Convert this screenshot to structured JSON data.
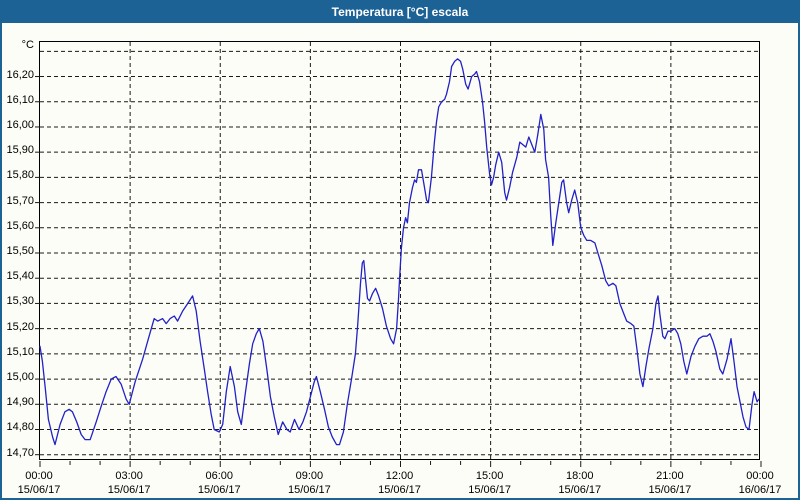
{
  "window": {
    "title": "Temperatura [°C] escala"
  },
  "colors": {
    "titlebar_bg": "#1d6295",
    "titlebar_text": "#ffffff",
    "window_border": "#1d6295",
    "background": "#fdfdf7",
    "plot_border": "#000000",
    "grid": "#1a1a1a",
    "axis_text": "#000000",
    "line": "#2121c8"
  },
  "chart_data": {
    "type": "line",
    "title": "Temperatura [°C] escala",
    "unit_label": "°C",
    "grid": true,
    "xlim_hours": [
      0,
      24
    ],
    "ylim": [
      14.675,
      16.337
    ],
    "y_gridline_values": [
      14.7,
      14.8,
      14.9,
      15.0,
      15.1,
      15.2,
      15.3,
      15.4,
      15.5,
      15.6,
      15.7,
      15.8,
      15.9,
      16.0,
      16.1,
      16.2,
      16.3
    ],
    "y_ticks": [
      {
        "value": 16.2,
        "label": "16,20"
      },
      {
        "value": 16.1,
        "label": "16,10"
      },
      {
        "value": 16.0,
        "label": "16,00"
      },
      {
        "value": 15.9,
        "label": "15,90"
      },
      {
        "value": 15.8,
        "label": "15,80"
      },
      {
        "value": 15.7,
        "label": "15,70"
      },
      {
        "value": 15.6,
        "label": "15,60"
      },
      {
        "value": 15.5,
        "label": "15,50"
      },
      {
        "value": 15.4,
        "label": "15,40"
      },
      {
        "value": 15.3,
        "label": "15,30"
      },
      {
        "value": 15.2,
        "label": "15,20"
      },
      {
        "value": 15.1,
        "label": "15,10"
      },
      {
        "value": 15.0,
        "label": "15,00"
      },
      {
        "value": 14.9,
        "label": "14,90"
      },
      {
        "value": 14.8,
        "label": "14,80"
      },
      {
        "value": 14.7,
        "label": "14,70"
      }
    ],
    "x_gridline_hours": [
      3,
      6,
      9,
      12,
      15,
      18,
      21
    ],
    "x_minor_tick_step_hours": 1,
    "x_ticks": [
      {
        "hour": 0,
        "time": "00:00",
        "date": "15/06/17"
      },
      {
        "hour": 3,
        "time": "03:00",
        "date": "15/06/17"
      },
      {
        "hour": 6,
        "time": "06:00",
        "date": "15/06/17"
      },
      {
        "hour": 9,
        "time": "09:00",
        "date": "15/06/17"
      },
      {
        "hour": 12,
        "time": "12:00",
        "date": "15/06/17"
      },
      {
        "hour": 15,
        "time": "15:00",
        "date": "15/06/17"
      },
      {
        "hour": 18,
        "time": "18:00",
        "date": "15/06/17"
      },
      {
        "hour": 21,
        "time": "21:00",
        "date": "15/06/17"
      },
      {
        "hour": 24,
        "time": "00:00",
        "date": "16/06/17"
      }
    ],
    "series": [
      {
        "name": "Temperatura",
        "color": "#2121c8",
        "points_hour_degC": [
          [
            0.0,
            15.13
          ],
          [
            0.08,
            15.07
          ],
          [
            0.17,
            14.97
          ],
          [
            0.28,
            14.84
          ],
          [
            0.42,
            14.77
          ],
          [
            0.5,
            14.74
          ],
          [
            0.67,
            14.82
          ],
          [
            0.83,
            14.87
          ],
          [
            0.97,
            14.88
          ],
          [
            1.08,
            14.87
          ],
          [
            1.22,
            14.83
          ],
          [
            1.37,
            14.78
          ],
          [
            1.5,
            14.76
          ],
          [
            1.67,
            14.76
          ],
          [
            1.87,
            14.83
          ],
          [
            2.03,
            14.89
          ],
          [
            2.2,
            14.95
          ],
          [
            2.37,
            15.0
          ],
          [
            2.53,
            15.01
          ],
          [
            2.7,
            14.98
          ],
          [
            2.87,
            14.92
          ],
          [
            2.97,
            14.9
          ],
          [
            3.17,
            14.99
          ],
          [
            3.42,
            15.08
          ],
          [
            3.63,
            15.17
          ],
          [
            3.8,
            15.24
          ],
          [
            3.92,
            15.23
          ],
          [
            4.08,
            15.24
          ],
          [
            4.2,
            15.22
          ],
          [
            4.33,
            15.24
          ],
          [
            4.47,
            15.25
          ],
          [
            4.58,
            15.23
          ],
          [
            4.75,
            15.27
          ],
          [
            4.92,
            15.3
          ],
          [
            5.08,
            15.33
          ],
          [
            5.2,
            15.27
          ],
          [
            5.33,
            15.15
          ],
          [
            5.47,
            15.04
          ],
          [
            5.58,
            14.95
          ],
          [
            5.7,
            14.86
          ],
          [
            5.8,
            14.8
          ],
          [
            5.97,
            14.79
          ],
          [
            6.08,
            14.82
          ],
          [
            6.2,
            14.95
          ],
          [
            6.33,
            15.05
          ],
          [
            6.47,
            14.97
          ],
          [
            6.58,
            14.87
          ],
          [
            6.7,
            14.82
          ],
          [
            6.83,
            14.94
          ],
          [
            6.97,
            15.06
          ],
          [
            7.08,
            15.14
          ],
          [
            7.2,
            15.18
          ],
          [
            7.3,
            15.2
          ],
          [
            7.42,
            15.15
          ],
          [
            7.55,
            15.04
          ],
          [
            7.67,
            14.93
          ],
          [
            7.8,
            14.85
          ],
          [
            7.93,
            14.78
          ],
          [
            8.08,
            14.83
          ],
          [
            8.22,
            14.8
          ],
          [
            8.33,
            14.79
          ],
          [
            8.47,
            14.84
          ],
          [
            8.62,
            14.8
          ],
          [
            8.75,
            14.83
          ],
          [
            8.87,
            14.87
          ],
          [
            9.0,
            14.93
          ],
          [
            9.13,
            14.99
          ],
          [
            9.2,
            15.01
          ],
          [
            9.33,
            14.95
          ],
          [
            9.47,
            14.88
          ],
          [
            9.6,
            14.81
          ],
          [
            9.73,
            14.77
          ],
          [
            9.87,
            14.74
          ],
          [
            9.97,
            14.74
          ],
          [
            10.1,
            14.79
          ],
          [
            10.23,
            14.9
          ],
          [
            10.37,
            15.0
          ],
          [
            10.5,
            15.1
          ],
          [
            10.58,
            15.22
          ],
          [
            10.67,
            15.38
          ],
          [
            10.73,
            15.46
          ],
          [
            10.78,
            15.47
          ],
          [
            10.83,
            15.4
          ],
          [
            10.9,
            15.32
          ],
          [
            10.97,
            15.31
          ],
          [
            11.07,
            15.34
          ],
          [
            11.17,
            15.36
          ],
          [
            11.27,
            15.33
          ],
          [
            11.4,
            15.28
          ],
          [
            11.53,
            15.21
          ],
          [
            11.67,
            15.16
          ],
          [
            11.77,
            15.14
          ],
          [
            11.87,
            15.2
          ],
          [
            11.93,
            15.31
          ],
          [
            11.97,
            15.4
          ],
          [
            12.03,
            15.52
          ],
          [
            12.1,
            15.6
          ],
          [
            12.17,
            15.64
          ],
          [
            12.23,
            15.62
          ],
          [
            12.3,
            15.7
          ],
          [
            12.4,
            15.76
          ],
          [
            12.47,
            15.79
          ],
          [
            12.53,
            15.78
          ],
          [
            12.6,
            15.83
          ],
          [
            12.7,
            15.83
          ],
          [
            12.8,
            15.76
          ],
          [
            12.87,
            15.71
          ],
          [
            12.93,
            15.7
          ],
          [
            13.03,
            15.8
          ],
          [
            13.13,
            15.94
          ],
          [
            13.2,
            16.02
          ],
          [
            13.27,
            16.08
          ],
          [
            13.37,
            16.1
          ],
          [
            13.47,
            16.11
          ],
          [
            13.53,
            16.13
          ],
          [
            13.63,
            16.18
          ],
          [
            13.7,
            16.24
          ],
          [
            13.8,
            16.26
          ],
          [
            13.9,
            16.27
          ],
          [
            14.0,
            16.26
          ],
          [
            14.07,
            16.23
          ],
          [
            14.17,
            16.17
          ],
          [
            14.25,
            16.15
          ],
          [
            14.37,
            16.2
          ],
          [
            14.47,
            16.21
          ],
          [
            14.53,
            16.22
          ],
          [
            14.63,
            16.18
          ],
          [
            14.73,
            16.1
          ],
          [
            14.8,
            16.02
          ],
          [
            14.87,
            15.92
          ],
          [
            14.97,
            15.81
          ],
          [
            15.03,
            15.77
          ],
          [
            15.1,
            15.8
          ],
          [
            15.17,
            15.85
          ],
          [
            15.27,
            15.9
          ],
          [
            15.37,
            15.86
          ],
          [
            15.47,
            15.74
          ],
          [
            15.53,
            15.71
          ],
          [
            15.63,
            15.76
          ],
          [
            15.73,
            15.82
          ],
          [
            15.87,
            15.88
          ],
          [
            15.97,
            15.94
          ],
          [
            16.07,
            15.93
          ],
          [
            16.17,
            15.92
          ],
          [
            16.27,
            15.96
          ],
          [
            16.37,
            15.93
          ],
          [
            16.47,
            15.9
          ],
          [
            16.57,
            15.97
          ],
          [
            16.67,
            16.05
          ],
          [
            16.77,
            15.99
          ],
          [
            16.83,
            15.87
          ],
          [
            16.93,
            15.8
          ],
          [
            17.0,
            15.65
          ],
          [
            17.07,
            15.53
          ],
          [
            17.17,
            15.62
          ],
          [
            17.27,
            15.7
          ],
          [
            17.37,
            15.78
          ],
          [
            17.43,
            15.79
          ],
          [
            17.53,
            15.7
          ],
          [
            17.6,
            15.66
          ],
          [
            17.7,
            15.71
          ],
          [
            17.8,
            15.75
          ],
          [
            17.9,
            15.7
          ],
          [
            18.0,
            15.6
          ],
          [
            18.1,
            15.57
          ],
          [
            18.2,
            15.55
          ],
          [
            18.33,
            15.55
          ],
          [
            18.47,
            15.54
          ],
          [
            18.57,
            15.5
          ],
          [
            18.7,
            15.45
          ],
          [
            18.83,
            15.39
          ],
          [
            18.93,
            15.37
          ],
          [
            19.07,
            15.38
          ],
          [
            19.17,
            15.37
          ],
          [
            19.3,
            15.3
          ],
          [
            19.43,
            15.26
          ],
          [
            19.53,
            15.23
          ],
          [
            19.67,
            15.22
          ],
          [
            19.77,
            15.21
          ],
          [
            19.87,
            15.12
          ],
          [
            19.97,
            15.02
          ],
          [
            20.07,
            14.97
          ],
          [
            20.17,
            15.05
          ],
          [
            20.27,
            15.12
          ],
          [
            20.4,
            15.2
          ],
          [
            20.5,
            15.3
          ],
          [
            20.57,
            15.33
          ],
          [
            20.63,
            15.26
          ],
          [
            20.73,
            15.17
          ],
          [
            20.8,
            15.16
          ],
          [
            20.9,
            15.19
          ],
          [
            21.0,
            15.19
          ],
          [
            21.13,
            15.2
          ],
          [
            21.23,
            15.18
          ],
          [
            21.33,
            15.14
          ],
          [
            21.43,
            15.07
          ],
          [
            21.53,
            15.02
          ],
          [
            21.67,
            15.09
          ],
          [
            21.8,
            15.13
          ],
          [
            21.93,
            15.16
          ],
          [
            22.07,
            15.17
          ],
          [
            22.2,
            15.17
          ],
          [
            22.3,
            15.18
          ],
          [
            22.4,
            15.15
          ],
          [
            22.5,
            15.11
          ],
          [
            22.63,
            15.04
          ],
          [
            22.73,
            15.02
          ],
          [
            22.87,
            15.08
          ],
          [
            23.0,
            15.16
          ],
          [
            23.1,
            15.07
          ],
          [
            23.2,
            14.97
          ],
          [
            23.3,
            14.91
          ],
          [
            23.4,
            14.85
          ],
          [
            23.5,
            14.81
          ],
          [
            23.6,
            14.8
          ],
          [
            23.7,
            14.9
          ],
          [
            23.77,
            14.95
          ],
          [
            23.87,
            14.91
          ],
          [
            23.93,
            14.92
          ]
        ]
      }
    ]
  }
}
